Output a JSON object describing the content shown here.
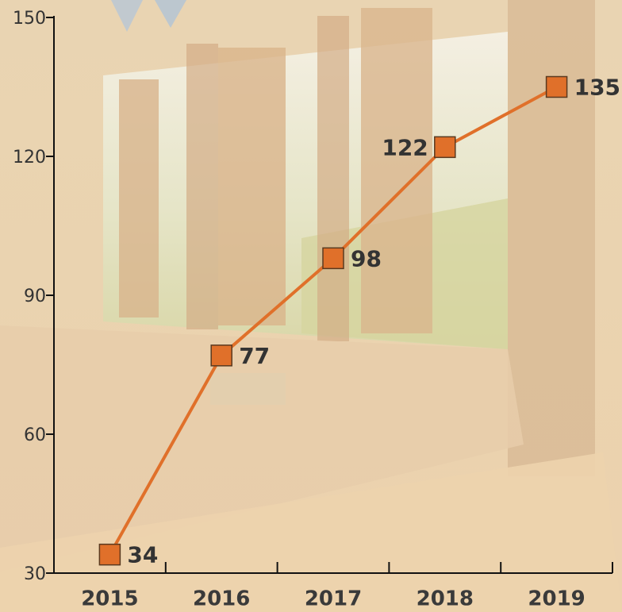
{
  "chart_data": {
    "type": "line",
    "categories": [
      "2015",
      "2016",
      "2017",
      "2018",
      "2019"
    ],
    "values": [
      34,
      77,
      98,
      122,
      135
    ],
    "color": "#e0702a",
    "ylim": [
      30,
      150
    ],
    "yticks": [
      30,
      60,
      90,
      120,
      150
    ]
  }
}
